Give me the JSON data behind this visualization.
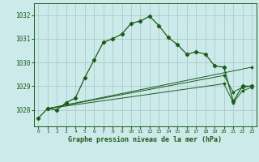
{
  "title": "Graphe pression niveau de la mer (hPa)",
  "background_color": "#cceaea",
  "grid_color": "#aacccc",
  "line_color": "#1a5c1a",
  "xlim": [
    -0.5,
    23.5
  ],
  "ylim": [
    1027.3,
    1032.5
  ],
  "yticks": [
    1028,
    1029,
    1030,
    1031,
    1032
  ],
  "xticks": [
    0,
    1,
    2,
    3,
    4,
    5,
    6,
    7,
    8,
    9,
    10,
    11,
    12,
    13,
    14,
    15,
    16,
    17,
    18,
    19,
    20,
    21,
    22,
    23
  ],
  "series_main": {
    "x": [
      0,
      1,
      2,
      3,
      4,
      5,
      6,
      7,
      8,
      9,
      10,
      11,
      12,
      13,
      14,
      15,
      16,
      17,
      18,
      19,
      20,
      21,
      22,
      23
    ],
    "y": [
      1027.65,
      1028.05,
      1028.0,
      1028.3,
      1028.5,
      1029.35,
      1030.1,
      1030.85,
      1031.0,
      1031.2,
      1031.65,
      1031.75,
      1031.95,
      1031.55,
      1031.05,
      1030.75,
      1030.35,
      1030.45,
      1030.35,
      1029.85,
      1029.8,
      1028.35,
      1029.0,
      1029.0
    ]
  },
  "series_fan": [
    {
      "x": [
        1,
        2,
        3,
        23
      ],
      "y": [
        1028.05,
        1028.05,
        1028.3,
        1029.75
      ]
    },
    {
      "x": [
        1,
        2,
        3,
        20,
        21,
        22,
        23
      ],
      "y": [
        1028.05,
        1028.05,
        1028.3,
        1029.45,
        1028.75,
        1028.95,
        1029.0
      ]
    },
    {
      "x": [
        1,
        2,
        3,
        20,
        21,
        22,
        23
      ],
      "y": [
        1028.05,
        1028.05,
        1028.3,
        1029.15,
        1028.35,
        1028.85,
        1028.95
      ]
    }
  ]
}
